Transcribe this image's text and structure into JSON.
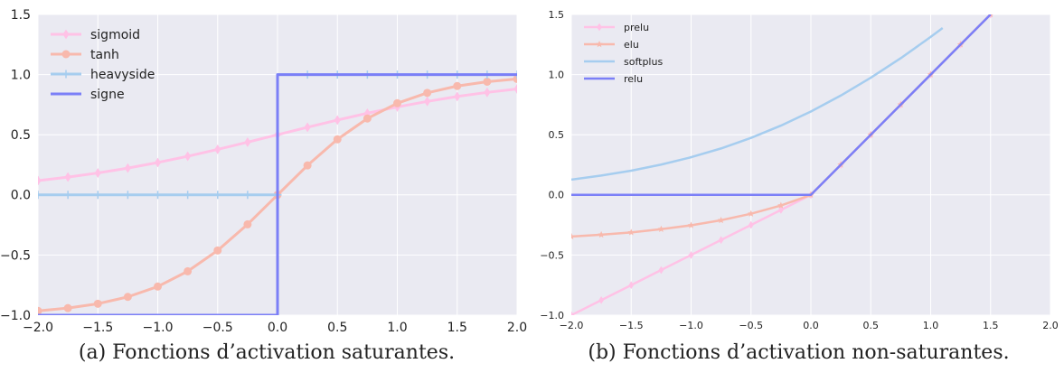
{
  "captions": [
    "(a) Fonctions d’activation saturantes.",
    "(b) Fonctions d’activation non-saturantes."
  ],
  "colors": {
    "background": "#eaeaf2",
    "grid": "#ffffff",
    "pink": "#ffc2e6",
    "salmon": "#f8b9ad",
    "lightblue": "#a6cdef",
    "blue": "#7b7ff7"
  },
  "chart_data": [
    {
      "type": "line",
      "xlim": [
        -2.0,
        2.0
      ],
      "ylim": [
        -1.0,
        1.5
      ],
      "xticks": [
        "−2.0",
        "−1.5",
        "−1.0",
        "−0.5",
        "0.0",
        "0.5",
        "1.0",
        "1.5",
        "2.0"
      ],
      "yticks": [
        "−1.0",
        "−0.5",
        "0.0",
        "0.5",
        "1.0",
        "1.5"
      ],
      "grid": true,
      "legend": "top-left",
      "series": [
        {
          "name": "sigmoid",
          "color": "#ffc2e6",
          "marker": "diamond",
          "x": [
            -2.0,
            -1.75,
            -1.5,
            -1.25,
            -1.0,
            -0.75,
            -0.5,
            -0.25,
            0.0,
            0.25,
            0.5,
            0.75,
            1.0,
            1.25,
            1.5,
            1.75,
            2.0
          ],
          "y": [
            0.119,
            0.148,
            0.182,
            0.223,
            0.269,
            0.321,
            0.378,
            0.438,
            0.5,
            0.562,
            0.622,
            0.679,
            0.731,
            0.777,
            0.818,
            0.852,
            0.881
          ]
        },
        {
          "name": "tanh",
          "color": "#f8b9ad",
          "marker": "circle",
          "x": [
            -2.0,
            -1.75,
            -1.5,
            -1.25,
            -1.0,
            -0.75,
            -0.5,
            -0.25,
            0.0,
            0.25,
            0.5,
            0.75,
            1.0,
            1.25,
            1.5,
            1.75,
            2.0
          ],
          "y": [
            -0.964,
            -0.941,
            -0.905,
            -0.848,
            -0.762,
            -0.635,
            -0.462,
            -0.245,
            0.0,
            0.245,
            0.462,
            0.635,
            0.762,
            0.848,
            0.905,
            0.941,
            0.964
          ]
        },
        {
          "name": "heavyside",
          "color": "#a6cdef",
          "marker": "plus",
          "x": [
            -2.0,
            -1.75,
            -1.5,
            -1.25,
            -1.0,
            -0.75,
            -0.5,
            -0.25,
            0.0,
            0.0,
            0.25,
            0.5,
            0.75,
            1.0,
            1.25,
            1.5,
            1.75,
            2.0
          ],
          "y": [
            0,
            0,
            0,
            0,
            0,
            0,
            0,
            0,
            0,
            1,
            1,
            1,
            1,
            1,
            1,
            1,
            1,
            1
          ]
        },
        {
          "name": "signe",
          "color": "#7b7ff7",
          "marker": "none",
          "x": [
            -2.0,
            0.0,
            0.0,
            2.0
          ],
          "y": [
            -1,
            -1,
            1,
            1
          ]
        }
      ]
    },
    {
      "type": "line",
      "xlim": [
        -2.0,
        2.0
      ],
      "ylim": [
        -1.0,
        1.5
      ],
      "xticks": [
        "−2.0",
        "−1.5",
        "−1.0",
        "−0.5",
        "0.0",
        "0.5",
        "1.0",
        "1.5",
        "2.0"
      ],
      "yticks": [
        "−1.0",
        "−0.5",
        "0.0",
        "0.5",
        "1.0",
        "1.5"
      ],
      "grid": true,
      "legend": "top-left",
      "series": [
        {
          "name": "prelu",
          "color": "#ffc2e6",
          "marker": "diamond",
          "x": [
            -2.0,
            -1.75,
            -1.5,
            -1.25,
            -1.0,
            -0.75,
            -0.5,
            -0.25,
            0.0,
            0.25,
            0.5,
            0.75,
            1.0,
            1.25,
            1.5
          ],
          "y": [
            -1.0,
            -0.875,
            -0.75,
            -0.625,
            -0.5,
            -0.375,
            -0.25,
            -0.125,
            0.0,
            0.25,
            0.5,
            0.75,
            1.0,
            1.25,
            1.5
          ]
        },
        {
          "name": "elu",
          "color": "#f8b9ad",
          "marker": "star",
          "x": [
            -2.0,
            -1.75,
            -1.5,
            -1.25,
            -1.0,
            -0.75,
            -0.5,
            -0.25,
            0.0,
            0.25,
            0.5,
            0.75,
            1.0,
            1.25,
            1.5
          ],
          "y": [
            -0.346,
            -0.331,
            -0.312,
            -0.285,
            -0.253,
            -0.211,
            -0.157,
            -0.088,
            0.0,
            0.25,
            0.5,
            0.75,
            1.0,
            1.25,
            1.5
          ]
        },
        {
          "name": "softplus",
          "color": "#a6cdef",
          "marker": "none",
          "x": [
            -2.0,
            -1.75,
            -1.5,
            -1.25,
            -1.0,
            -0.75,
            -0.5,
            -0.25,
            0.0,
            0.25,
            0.5,
            0.75,
            1.0,
            1.1
          ],
          "y": [
            0.127,
            0.161,
            0.201,
            0.252,
            0.313,
            0.386,
            0.474,
            0.576,
            0.693,
            0.826,
            0.974,
            1.136,
            1.313,
            1.387
          ]
        },
        {
          "name": "relu",
          "color": "#7b7ff7",
          "marker": "none",
          "x": [
            -2.0,
            0.0,
            1.5
          ],
          "y": [
            0.0,
            0.0,
            1.5
          ]
        }
      ]
    }
  ]
}
